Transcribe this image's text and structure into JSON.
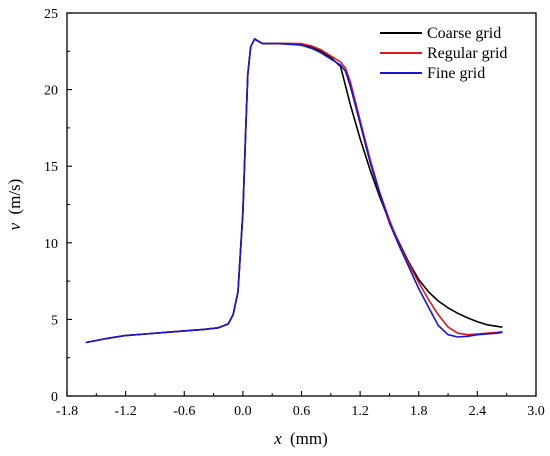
{
  "chart_data": {
    "type": "line",
    "xlabel": {
      "var": "x",
      "unit": "(mm)"
    },
    "ylabel": {
      "var": "v",
      "unit": "(m/s)"
    },
    "xlim": [
      -1.8,
      3.0
    ],
    "ylim": [
      0,
      25
    ],
    "xticks": [
      -1.8,
      -1.2,
      -0.6,
      0.0,
      0.6,
      1.2,
      1.8,
      2.4,
      3.0
    ],
    "xtick_labels": [
      "-1.8",
      "-1.2",
      "-0.6",
      "0.0",
      "0.6",
      "1.2",
      "1.8",
      "2.4",
      "3.0"
    ],
    "yticks": [
      0,
      5,
      10,
      15,
      20,
      25
    ],
    "ytick_labels": [
      "0",
      "5",
      "10",
      "15",
      "20",
      "25"
    ],
    "grid": false,
    "legend_position": "top-right",
    "series": [
      {
        "name": "Coarse grid",
        "color": "#000000",
        "points": [
          [
            -1.6,
            3.5
          ],
          [
            -1.4,
            3.75
          ],
          [
            -1.2,
            3.95
          ],
          [
            -1.0,
            4.05
          ],
          [
            -0.8,
            4.15
          ],
          [
            -0.6,
            4.25
          ],
          [
            -0.4,
            4.35
          ],
          [
            -0.25,
            4.45
          ],
          [
            -0.15,
            4.7
          ],
          [
            -0.1,
            5.3
          ],
          [
            -0.05,
            6.8
          ],
          [
            0.0,
            12.0
          ],
          [
            0.03,
            17.5
          ],
          [
            0.05,
            21.0
          ],
          [
            0.08,
            22.8
          ],
          [
            0.12,
            23.3
          ],
          [
            0.2,
            23.0
          ],
          [
            0.35,
            23.0
          ],
          [
            0.5,
            23.0
          ],
          [
            0.6,
            22.95
          ],
          [
            0.7,
            22.8
          ],
          [
            0.8,
            22.5
          ],
          [
            0.9,
            22.1
          ],
          [
            1.0,
            21.5
          ],
          [
            1.1,
            19.0
          ],
          [
            1.2,
            16.8
          ],
          [
            1.3,
            14.8
          ],
          [
            1.4,
            13.0
          ],
          [
            1.5,
            11.4
          ],
          [
            1.6,
            10.0
          ],
          [
            1.7,
            8.7
          ],
          [
            1.8,
            7.6
          ],
          [
            1.9,
            6.8
          ],
          [
            2.0,
            6.2
          ],
          [
            2.1,
            5.75
          ],
          [
            2.2,
            5.4
          ],
          [
            2.3,
            5.1
          ],
          [
            2.4,
            4.85
          ],
          [
            2.5,
            4.65
          ],
          [
            2.6,
            4.55
          ],
          [
            2.65,
            4.5
          ]
        ]
      },
      {
        "name": "Regular grid",
        "color": "#e0161b",
        "points": [
          [
            -1.6,
            3.5
          ],
          [
            -1.4,
            3.75
          ],
          [
            -1.2,
            3.95
          ],
          [
            -1.0,
            4.05
          ],
          [
            -0.8,
            4.15
          ],
          [
            -0.6,
            4.25
          ],
          [
            -0.4,
            4.35
          ],
          [
            -0.25,
            4.45
          ],
          [
            -0.15,
            4.7
          ],
          [
            -0.1,
            5.3
          ],
          [
            -0.05,
            6.8
          ],
          [
            0.0,
            12.0
          ],
          [
            0.03,
            17.5
          ],
          [
            0.05,
            21.0
          ],
          [
            0.08,
            22.8
          ],
          [
            0.12,
            23.3
          ],
          [
            0.2,
            23.0
          ],
          [
            0.35,
            23.0
          ],
          [
            0.5,
            23.0
          ],
          [
            0.6,
            23.0
          ],
          [
            0.7,
            22.85
          ],
          [
            0.8,
            22.6
          ],
          [
            0.9,
            22.2
          ],
          [
            1.0,
            21.8
          ],
          [
            1.05,
            21.4
          ],
          [
            1.1,
            20.5
          ],
          [
            1.2,
            18.0
          ],
          [
            1.3,
            15.5
          ],
          [
            1.4,
            13.3
          ],
          [
            1.5,
            11.5
          ],
          [
            1.6,
            9.9
          ],
          [
            1.7,
            8.6
          ],
          [
            1.8,
            7.4
          ],
          [
            1.9,
            6.3
          ],
          [
            2.0,
            5.3
          ],
          [
            2.1,
            4.5
          ],
          [
            2.2,
            4.1
          ],
          [
            2.3,
            4.0
          ],
          [
            2.4,
            4.05
          ],
          [
            2.5,
            4.1
          ],
          [
            2.6,
            4.15
          ],
          [
            2.65,
            4.2
          ]
        ]
      },
      {
        "name": "Fine grid",
        "color": "#1515d6",
        "points": [
          [
            -1.6,
            3.5
          ],
          [
            -1.4,
            3.75
          ],
          [
            -1.2,
            3.95
          ],
          [
            -1.0,
            4.05
          ],
          [
            -0.8,
            4.15
          ],
          [
            -0.6,
            4.25
          ],
          [
            -0.4,
            4.35
          ],
          [
            -0.25,
            4.45
          ],
          [
            -0.15,
            4.7
          ],
          [
            -0.1,
            5.3
          ],
          [
            -0.05,
            6.8
          ],
          [
            0.0,
            12.0
          ],
          [
            0.03,
            17.5
          ],
          [
            0.05,
            21.0
          ],
          [
            0.08,
            22.8
          ],
          [
            0.12,
            23.3
          ],
          [
            0.2,
            23.0
          ],
          [
            0.35,
            23.0
          ],
          [
            0.5,
            22.95
          ],
          [
            0.6,
            22.9
          ],
          [
            0.7,
            22.7
          ],
          [
            0.8,
            22.4
          ],
          [
            0.9,
            22.0
          ],
          [
            1.0,
            21.6
          ],
          [
            1.05,
            21.2
          ],
          [
            1.1,
            20.2
          ],
          [
            1.2,
            17.8
          ],
          [
            1.3,
            15.3
          ],
          [
            1.4,
            13.2
          ],
          [
            1.5,
            11.3
          ],
          [
            1.6,
            9.8
          ],
          [
            1.7,
            8.4
          ],
          [
            1.8,
            7.0
          ],
          [
            1.9,
            5.8
          ],
          [
            2.0,
            4.6
          ],
          [
            2.1,
            4.0
          ],
          [
            2.2,
            3.85
          ],
          [
            2.3,
            3.9
          ],
          [
            2.4,
            4.0
          ],
          [
            2.5,
            4.05
          ],
          [
            2.6,
            4.1
          ],
          [
            2.65,
            4.15
          ]
        ]
      }
    ]
  }
}
